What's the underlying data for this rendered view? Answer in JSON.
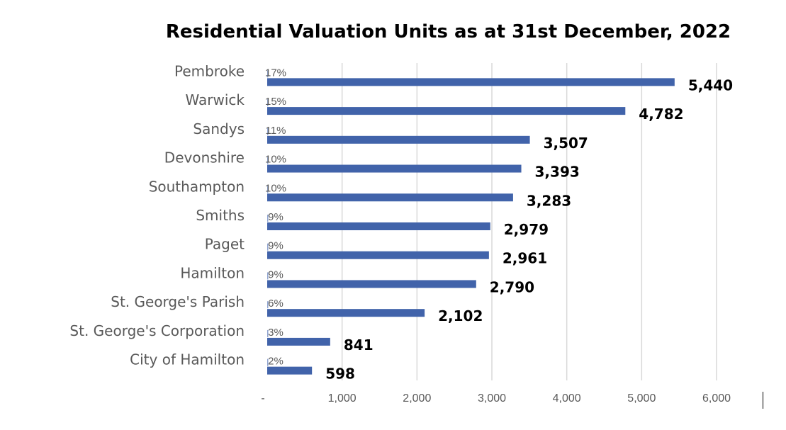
{
  "chart_data": {
    "type": "bar",
    "orientation": "horizontal",
    "title": "Residential Valuation Units as at 31st December, 2022",
    "xlabel": "",
    "ylabel": "",
    "categories": [
      "Pembroke",
      "Warwick",
      "Sandys",
      "Devonshire",
      "Southampton",
      "Smiths",
      "Paget",
      "Hamilton",
      "St. George's Parish",
      "St. George's Corporation",
      "City of Hamilton"
    ],
    "values": [
      5440,
      4782,
      3507,
      3393,
      3283,
      2979,
      2961,
      2790,
      2102,
      841,
      598
    ],
    "value_labels": [
      "5,440",
      "4,782",
      "3,507",
      "3,393",
      "3,283",
      "2,979",
      "2,961",
      "2,790",
      "2,102",
      "841",
      "598"
    ],
    "percent_labels": [
      "17%",
      "15%",
      "11%",
      "10%",
      "10%",
      "9%",
      "9%",
      "9%",
      "6%",
      "3%",
      "2%"
    ],
    "percent_values": [
      17,
      15,
      11,
      10,
      10,
      9,
      9,
      9,
      6,
      3,
      2
    ],
    "xlim": [
      0,
      6000
    ],
    "x_ticks": [
      0,
      1000,
      2000,
      3000,
      4000,
      5000,
      6000
    ],
    "x_tick_labels": [
      "-",
      "1,000",
      "2,000",
      "3,000",
      "4,000",
      "5,000",
      "6,000"
    ],
    "grid": "vertical",
    "legend": "none",
    "colors": {
      "bar": "#4163AA",
      "gridline": "#D9D9D9",
      "category_text": "#595959",
      "value_text": "#000000"
    }
  }
}
